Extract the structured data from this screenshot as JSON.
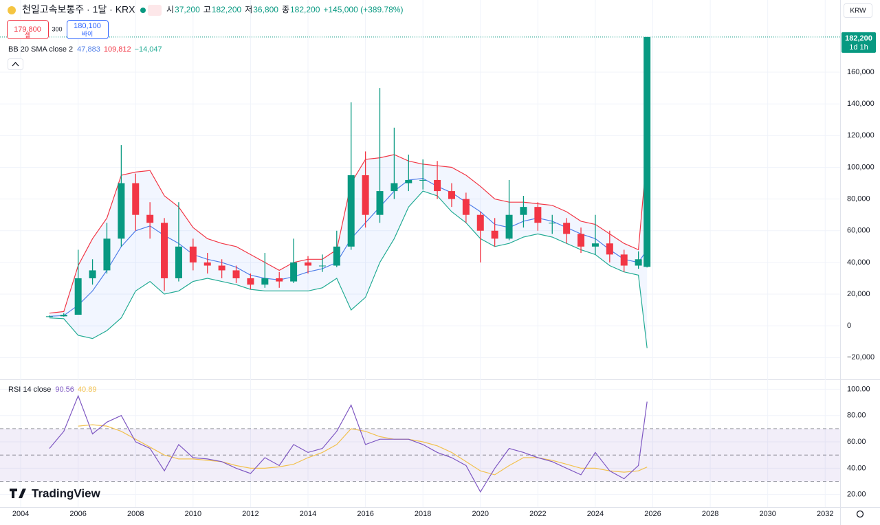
{
  "header": {
    "symbol": "천일고속보통주 · 1달 · KRX",
    "ohlc": [
      {
        "key": "시",
        "value": "37,200"
      },
      {
        "key": "고",
        "value": "182,200"
      },
      {
        "key": "저",
        "value": "36,800"
      },
      {
        "key": "종",
        "value": "182,200"
      }
    ],
    "change": "+145,000 (+389.78%)",
    "sell": {
      "price": "179,800",
      "label": "셀"
    },
    "spread": "300",
    "buy": {
      "price": "180,100",
      "label": "바이"
    },
    "currency": "KRW",
    "brand": "TradingView"
  },
  "chart_data": [
    {
      "type": "candlestick",
      "x": [
        2005.0,
        2005.5,
        2006.0,
        2006.5,
        2007.0,
        2007.5,
        2008.0,
        2008.5,
        2009.0,
        2009.5,
        2010.0,
        2010.5,
        2011.0,
        2011.5,
        2012.0,
        2012.5,
        2013.0,
        2013.5,
        2014.0,
        2014.5,
        2015.0,
        2015.5,
        2016.0,
        2016.5,
        2017.0,
        2017.5,
        2018.0,
        2018.5,
        2019.0,
        2019.5,
        2020.0,
        2020.5,
        2021.0,
        2021.5,
        2022.0,
        2022.5,
        2023.0,
        2023.5,
        2024.0,
        2024.5,
        2025.0,
        2025.5,
        2025.8
      ],
      "open": [
        5800,
        6000,
        7000,
        30000,
        35000,
        55000,
        90000,
        70000,
        65000,
        30000,
        50000,
        40000,
        38000,
        35000,
        30000,
        26000,
        30000,
        28000,
        40000,
        38000,
        38000,
        50000,
        95000,
        70000,
        85000,
        90000,
        92000,
        92000,
        85000,
        80000,
        70000,
        60000,
        55000,
        70000,
        75000,
        65000,
        65000,
        58000,
        50000,
        52000,
        45000,
        38000,
        37200
      ],
      "high": [
        6500,
        8000,
        48000,
        42000,
        65000,
        114000,
        96000,
        78000,
        68000,
        78000,
        55000,
        46000,
        42000,
        38000,
        33000,
        46000,
        34000,
        55000,
        44000,
        45000,
        60000,
        141000,
        110000,
        150000,
        125000,
        108000,
        105000,
        104000,
        90000,
        84000,
        72000,
        68000,
        92000,
        82000,
        78000,
        70000,
        68000,
        62000,
        70000,
        60000,
        48000,
        47000,
        182200
      ],
      "low": [
        5500,
        5800,
        7000,
        26000,
        33000,
        50000,
        60000,
        55000,
        22000,
        28000,
        35000,
        33000,
        30000,
        27000,
        23000,
        24000,
        24000,
        27000,
        33000,
        34000,
        37000,
        48000,
        62000,
        65000,
        80000,
        85000,
        86000,
        80000,
        75000,
        65000,
        40000,
        50000,
        54000,
        62000,
        60000,
        58000,
        52000,
        46000,
        45000,
        40000,
        34000,
        36000,
        36800
      ],
      "close": [
        6000,
        7000,
        30000,
        35000,
        55000,
        90000,
        70000,
        65000,
        30000,
        50000,
        40000,
        38000,
        35000,
        30000,
        26000,
        30000,
        28000,
        40000,
        38000,
        38000,
        50000,
        95000,
        70000,
        85000,
        90000,
        92000,
        92000,
        85000,
        80000,
        70000,
        60000,
        55000,
        70000,
        75000,
        65000,
        65000,
        58000,
        50000,
        52000,
        45000,
        38000,
        42000,
        182200
      ],
      "up_color": "#089981",
      "down_color": "#f23645",
      "bands": {
        "title": "BB 20 SMA close 2",
        "fill": "rgba(41,98,255,0.06)",
        "basis": {
          "color": "#4f7ee8",
          "label": "47,883",
          "values": [
            6000,
            6500,
            13000,
            22000,
            35000,
            50000,
            60000,
            63000,
            57000,
            52000,
            45000,
            42000,
            40000,
            37000,
            32000,
            30000,
            29000,
            31000,
            34000,
            36000,
            40000,
            55000,
            65000,
            75000,
            85000,
            92000,
            93000,
            88000,
            84000,
            78000,
            72000,
            64000,
            62000,
            66000,
            68000,
            66000,
            62000,
            58000,
            55000,
            48000,
            42000,
            40000,
            47883
          ]
        },
        "upper": {
          "color": "#f23645",
          "label": "109,812",
          "values": [
            8000,
            9000,
            38000,
            55000,
            68000,
            95000,
            97000,
            98000,
            82000,
            75000,
            62000,
            55000,
            52000,
            50000,
            45000,
            40000,
            35000,
            40000,
            42000,
            42000,
            48000,
            90000,
            105000,
            106000,
            108000,
            104000,
            102000,
            101000,
            100000,
            95000,
            88000,
            80000,
            78000,
            78000,
            77000,
            76000,
            72000,
            66000,
            64000,
            58000,
            52000,
            48000,
            109812
          ]
        },
        "lower": {
          "color": "#22ab94",
          "label": "−14,047",
          "values": [
            5000,
            4500,
            -6000,
            -8000,
            -3000,
            5000,
            22000,
            28000,
            20000,
            22000,
            28000,
            30000,
            28000,
            26000,
            23000,
            22000,
            22000,
            22000,
            22000,
            24000,
            30000,
            10000,
            18000,
            40000,
            55000,
            75000,
            85000,
            82000,
            72000,
            65000,
            55000,
            50000,
            52000,
            56000,
            58000,
            56000,
            52000,
            48000,
            45000,
            38000,
            34000,
            32000,
            -14047
          ]
        }
      },
      "last_price": {
        "value": 182200,
        "label": "182,200",
        "countdown": "1d 1h",
        "color": "#089981"
      },
      "xlim": [
        2003.28,
        2032.52
      ],
      "xticks": [
        2004,
        2006,
        2008,
        2010,
        2012,
        2014,
        2016,
        2018,
        2020,
        2022,
        2024,
        2026,
        2028,
        2030,
        2032
      ],
      "ylim": [
        -32000,
        183000
      ],
      "yticks": [
        {
          "value": -20000,
          "label": "−20,000"
        },
        0,
        {
          "value": 20000,
          "label": "20,000"
        },
        {
          "value": 40000,
          "label": "40,000"
        },
        {
          "value": 60000,
          "label": "60,000"
        },
        {
          "value": 80000,
          "label": "80,000"
        },
        {
          "value": 100000,
          "label": "100,000"
        },
        {
          "value": 120000,
          "label": "120,000"
        },
        {
          "value": 140000,
          "label": "140,000"
        },
        {
          "value": 160000,
          "label": "160,000"
        }
      ],
      "grid": true
    },
    {
      "type": "line",
      "title": "RSI 14 close",
      "x": [
        2005.0,
        2005.5,
        2006.0,
        2006.5,
        2007.0,
        2007.5,
        2008.0,
        2008.5,
        2009.0,
        2009.5,
        2010.0,
        2010.5,
        2011.0,
        2011.5,
        2012.0,
        2012.5,
        2013.0,
        2013.5,
        2014.0,
        2014.5,
        2015.0,
        2015.5,
        2016.0,
        2016.5,
        2017.0,
        2017.5,
        2018.0,
        2018.5,
        2019.0,
        2019.5,
        2020.0,
        2020.5,
        2021.0,
        2021.5,
        2022.0,
        2022.5,
        2023.0,
        2023.5,
        2024.0,
        2024.5,
        2025.0,
        2025.5,
        2025.8
      ],
      "series": [
        {
          "color": "#7e57c2",
          "label": "90.56",
          "values": [
            55,
            68,
            95,
            66,
            75,
            80,
            60,
            55,
            38,
            58,
            48,
            47,
            45,
            40,
            36,
            48,
            42,
            58,
            52,
            55,
            68,
            88,
            58,
            62,
            62,
            62,
            58,
            52,
            48,
            42,
            22,
            40,
            55,
            52,
            48,
            45,
            40,
            35,
            52,
            38,
            32,
            42,
            90.56
          ]
        },
        {
          "color": "#f2c14e",
          "label": "40.89",
          "values": [
            null,
            null,
            72,
            73,
            72,
            68,
            62,
            56,
            50,
            47,
            47,
            46,
            45,
            42,
            40,
            40,
            41,
            43,
            48,
            52,
            58,
            70,
            68,
            64,
            62,
            62,
            60,
            57,
            52,
            45,
            38,
            35,
            42,
            48,
            48,
            46,
            43,
            40,
            40,
            38,
            37,
            38,
            40.89
          ]
        }
      ],
      "levels": [
        70,
        50,
        30
      ],
      "band_fill": "rgba(126,87,194,0.1)",
      "xlim": [
        2003.28,
        2032.52
      ],
      "ylim": [
        12,
        107
      ],
      "yticks": [
        {
          "value": 20,
          "label": "20.00"
        },
        {
          "value": 40,
          "label": "40.00"
        },
        {
          "value": 60,
          "label": "60.00"
        },
        {
          "value": 80,
          "label": "80.00"
        },
        {
          "value": 100,
          "label": "100.00"
        }
      ],
      "grid": true
    }
  ]
}
